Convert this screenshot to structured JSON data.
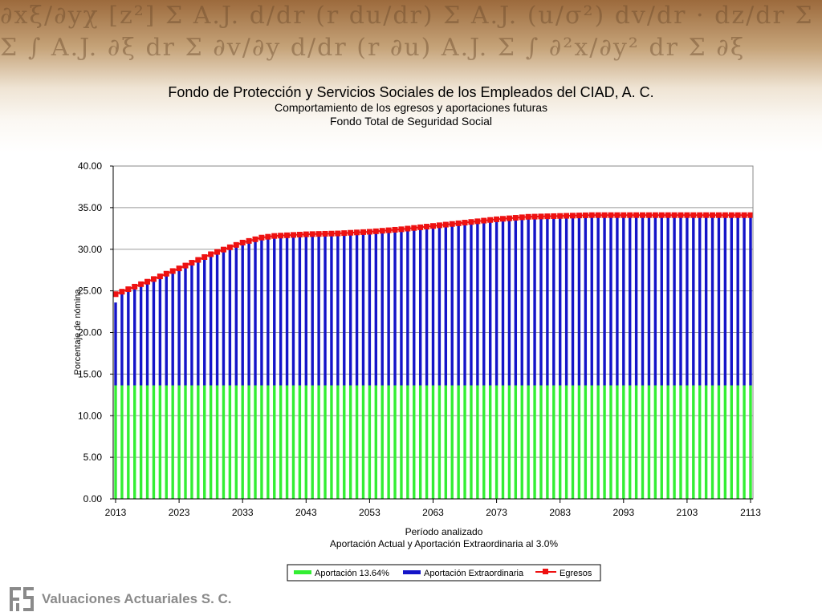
{
  "header": {
    "title": "Fondo de Protección y Servicios Sociales de los Empleados del CIAD, A. C.",
    "subtitle": "Comportamiento de los egresos y aportaciones futuras",
    "subtitle2": "Fondo Total de Seguridad Social"
  },
  "footer": {
    "company": "Valuaciones Actuariales S. C."
  },
  "chart_data": {
    "type": "bar",
    "stacked": true,
    "x_start": 2013,
    "x_end": 2113,
    "x_ticks": [
      "2013",
      "2023",
      "2033",
      "2043",
      "2053",
      "2063",
      "2073",
      "2083",
      "2093",
      "2103",
      "2113"
    ],
    "y_ticks": [
      "0.00",
      "5.00",
      "10.00",
      "15.00",
      "20.00",
      "25.00",
      "30.00",
      "35.00",
      "40.00"
    ],
    "ylim": [
      0,
      40
    ],
    "ylabel": "Porcentaje de nómina",
    "xlabel": "Período analizado",
    "xlabel2": "Aportación Actual y Aportación Extraordinaria al 3.0%",
    "grid": true,
    "legend_position": "bottom",
    "egresos_anchors": [
      [
        2013,
        24.6
      ],
      [
        2018,
        26.1
      ],
      [
        2023,
        27.7
      ],
      [
        2028,
        29.4
      ],
      [
        2033,
        30.8
      ],
      [
        2036,
        31.4
      ],
      [
        2038,
        31.6
      ],
      [
        2043,
        31.8
      ],
      [
        2048,
        31.9
      ],
      [
        2053,
        32.1
      ],
      [
        2058,
        32.4
      ],
      [
        2063,
        32.8
      ],
      [
        2068,
        33.2
      ],
      [
        2073,
        33.6
      ],
      [
        2078,
        33.9
      ],
      [
        2083,
        34.0
      ],
      [
        2088,
        34.1
      ],
      [
        2113,
        34.1
      ]
    ],
    "series": [
      {
        "name": "Aportación 13.64%",
        "kind": "bar",
        "color": "#33ee33",
        "value": 13.64
      },
      {
        "name": "Aportación Extraordinaria",
        "kind": "bar",
        "color": "#1414c8",
        "note_total_equals": "Egresos"
      },
      {
        "name": "Egresos",
        "kind": "line",
        "color": "#ee1111",
        "marker": "square"
      }
    ]
  }
}
